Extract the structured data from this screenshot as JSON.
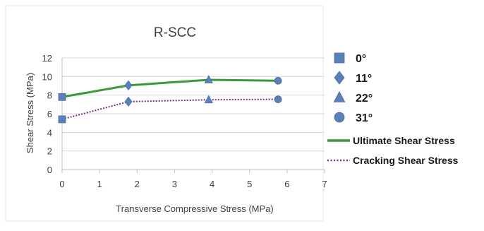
{
  "chart_data": {
    "type": "line",
    "title": "R-SCC",
    "xlabel": "Transverse Compressive Stress (MPa)",
    "ylabel": "Shear Stress (MPa)",
    "xlim": [
      0,
      7
    ],
    "ylim": [
      0,
      12
    ],
    "x_ticks": [
      "0",
      "1",
      "2",
      "3",
      "4",
      "5",
      "6",
      "7"
    ],
    "y_ticks": [
      "0",
      "2",
      "4",
      "6",
      "8",
      "10",
      "12"
    ],
    "grid": "horizontal",
    "legend_position": "right",
    "series": [
      {
        "name": "Ultimate Shear Stress",
        "style": "solid",
        "color": "#3a9a3a",
        "points": [
          {
            "x": 0,
            "y": 7.8,
            "marker": "square"
          },
          {
            "x": 1.77,
            "y": 9.05,
            "marker": "diamond"
          },
          {
            "x": 3.91,
            "y": 9.65,
            "marker": "triangle"
          },
          {
            "x": 5.76,
            "y": 9.55,
            "marker": "circle"
          }
        ]
      },
      {
        "name": "Cracking Shear Stress",
        "style": "dotted",
        "color": "#7b2a8a",
        "points": [
          {
            "x": 0,
            "y": 5.4,
            "marker": "square"
          },
          {
            "x": 1.77,
            "y": 7.3,
            "marker": "diamond"
          },
          {
            "x": 3.91,
            "y": 7.5,
            "marker": "triangle"
          },
          {
            "x": 5.76,
            "y": 7.55,
            "marker": "circle"
          }
        ]
      }
    ],
    "marker_legend": [
      {
        "label": "0°",
        "marker": "square"
      },
      {
        "label": "11°",
        "marker": "diamond"
      },
      {
        "label": "22°",
        "marker": "triangle"
      },
      {
        "label": "31°",
        "marker": "circle"
      }
    ],
    "marker_color": "#5b80b8"
  }
}
